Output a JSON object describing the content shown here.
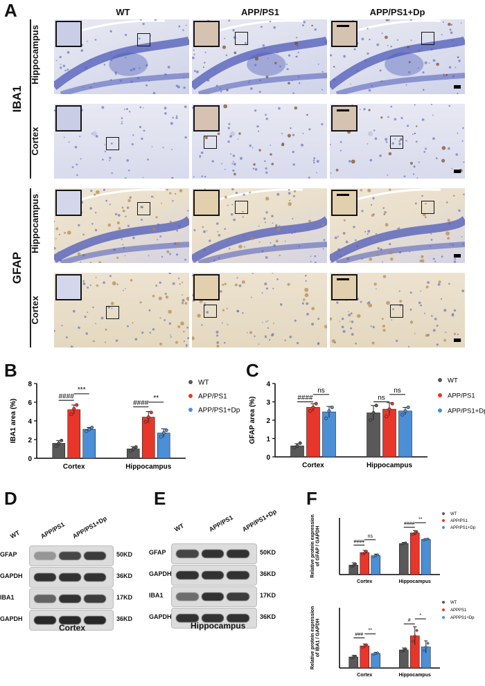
{
  "panelA": {
    "letter": "A",
    "columns": [
      "WT",
      "APP/PS1",
      "APP/PS1+Dp"
    ],
    "groups": [
      {
        "name": "IBA1",
        "rows": [
          "Hippocampus",
          "Cortex"
        ],
        "stain": "iba1"
      },
      {
        "name": "GFAP",
        "rows": [
          "Hippocampus",
          "Cortex"
        ],
        "stain": "gfap"
      }
    ]
  },
  "panelB": {
    "letter": "B",
    "chart_data": {
      "type": "bar",
      "categories": [
        "Cortex",
        "Hippocampus"
      ],
      "ylabel": "IBA1 area (%)",
      "ylim": [
        0,
        8
      ],
      "yticks": [
        "0",
        "2",
        "4",
        "6",
        "8"
      ],
      "series": [
        {
          "name": "WT",
          "values": [
            1.6,
            1.0
          ],
          "color": "#595959",
          "points": [
            [
              1.3,
              1.6,
              1.9
            ],
            [
              0.8,
              1.0,
              1.2
            ]
          ],
          "err": [
            0.3,
            0.25
          ]
        },
        {
          "name": "APP/PS1",
          "values": [
            5.2,
            4.4
          ],
          "color": "#e8362a",
          "points": [
            [
              4.7,
              5.3,
              5.7
            ],
            [
              3.9,
              4.4,
              4.9
            ]
          ],
          "err": [
            0.5,
            0.6
          ]
        },
        {
          "name": "APP/PS1+Dp",
          "values": [
            3.1,
            2.7
          ],
          "color": "#4b8fd6",
          "points": [
            [
              2.9,
              3.1,
              3.3
            ],
            [
              2.3,
              2.7,
              3.0
            ]
          ],
          "err": [
            0.2,
            0.45
          ]
        }
      ],
      "annotations": [
        {
          "text": "####",
          "group": 0,
          "from": 0,
          "to": 1,
          "level": 6.2
        },
        {
          "text": "***",
          "group": 0,
          "from": 1,
          "to": 2,
          "level": 6.9
        },
        {
          "text": "####",
          "group": 1,
          "from": 0,
          "to": 1,
          "level": 5.5
        },
        {
          "text": "**",
          "group": 1,
          "from": 1,
          "to": 2,
          "level": 6.0
        }
      ]
    }
  },
  "panelC": {
    "letter": "C",
    "chart_data": {
      "type": "bar",
      "categories": [
        "Cortex",
        "Hippocampus"
      ],
      "ylabel": "GFAP area (%)",
      "ylim": [
        0,
        4
      ],
      "yticks": [
        "0",
        "1",
        "2",
        "3",
        "4"
      ],
      "series": [
        {
          "name": "WT",
          "values": [
            0.6,
            2.4
          ],
          "color": "#595959",
          "points": [
            [
              0.5,
              0.6,
              0.75
            ],
            [
              2.0,
              2.4,
              2.8
            ]
          ],
          "err": [
            0.12,
            0.4
          ]
        },
        {
          "name": "APP/PS1",
          "values": [
            2.7,
            2.6
          ],
          "color": "#e8362a",
          "points": [
            [
              2.5,
              2.7,
              2.9
            ],
            [
              2.2,
              2.6,
              2.9
            ]
          ],
          "err": [
            0.2,
            0.35
          ]
        },
        {
          "name": "APP/PS1+Dp",
          "values": [
            2.45,
            2.5
          ],
          "color": "#4b8fd6",
          "points": [
            [
              2.1,
              2.5,
              2.7
            ],
            [
              2.3,
              2.5,
              2.7
            ]
          ],
          "err": [
            0.3,
            0.2
          ]
        }
      ],
      "annotations": [
        {
          "text": "####",
          "group": 0,
          "from": 0,
          "to": 1,
          "level": 3.0
        },
        {
          "text": "ns",
          "group": 0,
          "from": 1,
          "to": 2,
          "level": 3.4
        },
        {
          "text": "ns",
          "group": 1,
          "from": 0,
          "to": 1,
          "level": 3.0
        },
        {
          "text": "ns",
          "group": 1,
          "from": 1,
          "to": 2,
          "level": 3.4
        }
      ]
    }
  },
  "panelD": {
    "letter": "D",
    "lanes": [
      "WT",
      "APP/PS1",
      "APP/PS1+Dp"
    ],
    "bands": [
      {
        "name": "GFAP",
        "kd": "50KD",
        "intensity": [
          0.35,
          0.75,
          0.8
        ]
      },
      {
        "name": "GAPDH",
        "kd": "36KD",
        "intensity": [
          0.85,
          0.85,
          0.85
        ]
      },
      {
        "name": "IBA1",
        "kd": "17KD",
        "intensity": [
          0.6,
          0.85,
          0.8
        ]
      },
      {
        "name": "GAPDH",
        "kd": "36KD",
        "intensity": [
          0.9,
          0.9,
          0.9
        ]
      }
    ],
    "caption": "Cortex"
  },
  "panelE": {
    "letter": "E",
    "lanes": [
      "WT",
      "APP/PS1",
      "APP/PS1+Dp"
    ],
    "bands": [
      {
        "name": "GFAP",
        "kd": "50KD",
        "intensity": [
          0.75,
          0.85,
          0.85
        ]
      },
      {
        "name": "GAPDH",
        "kd": "36KD",
        "intensity": [
          0.85,
          0.85,
          0.85
        ]
      },
      {
        "name": "IBA1",
        "kd": "17KD",
        "intensity": [
          0.55,
          0.85,
          0.8
        ]
      },
      {
        "name": "GAPDH",
        "kd": "36KD",
        "intensity": [
          0.85,
          0.85,
          0.85
        ]
      }
    ],
    "caption": "Hippocampus"
  },
  "panelF": {
    "letter": "F",
    "charts": [
      {
        "type": "bar",
        "categories": [
          "Cortex",
          "Hippocampus"
        ],
        "ylabel": [
          "Relative protein expression",
          "of GFAP / GAPDH"
        ],
        "ylim": [
          0,
          1.5
        ],
        "series": [
          {
            "name": "WT",
            "values": [
              0.25,
              0.82
            ],
            "color": "#595959",
            "err": [
              0.06,
              0.03
            ]
          },
          {
            "name": "APP/PS1",
            "values": [
              0.58,
              1.1
            ],
            "color": "#e8362a",
            "err": [
              0.06,
              0.06
            ]
          },
          {
            "name": "APP/PS1+Dp",
            "values": [
              0.5,
              0.93
            ],
            "color": "#4b8fd6",
            "err": [
              0.04,
              0.02
            ]
          }
        ],
        "annotations": [
          {
            "text": "####",
            "group": 0,
            "from": 0,
            "to": 1,
            "level": 0.78
          },
          {
            "text": "ns",
            "group": 0,
            "from": 1,
            "to": 2,
            "level": 0.92
          },
          {
            "text": "####",
            "group": 1,
            "from": 0,
            "to": 1,
            "level": 1.25
          },
          {
            "text": "**",
            "group": 1,
            "from": 1,
            "to": 2,
            "level": 1.37
          }
        ]
      },
      {
        "type": "bar",
        "categories": [
          "Cortex",
          "Hippocampus"
        ],
        "ylabel": [
          "Relative protein expression",
          "of IBA1 / GAPDH"
        ],
        "ylim": [
          0,
          3.0
        ],
        "series": [
          {
            "name": "WT",
            "values": [
              0.55,
              0.9
            ],
            "color": "#595959",
            "err": [
              0.08,
              0.1
            ]
          },
          {
            "name": "APPPS1",
            "values": [
              1.1,
              1.6
            ],
            "color": "#e8362a",
            "err": [
              0.1,
              0.45
            ]
          },
          {
            "name": "APPPS1+Dp",
            "values": [
              0.72,
              1.05
            ],
            "color": "#4b8fd6",
            "err": [
              0.06,
              0.3
            ]
          }
        ],
        "annotations": [
          {
            "text": "###",
            "group": 0,
            "from": 0,
            "to": 1,
            "level": 1.5
          },
          {
            "text": "**",
            "group": 0,
            "from": 1,
            "to": 2,
            "level": 1.7
          },
          {
            "text": "#",
            "group": 1,
            "from": 0,
            "to": 1,
            "level": 2.2
          },
          {
            "text": "*",
            "group": 1,
            "from": 1,
            "to": 2,
            "level": 2.45
          }
        ]
      }
    ]
  }
}
